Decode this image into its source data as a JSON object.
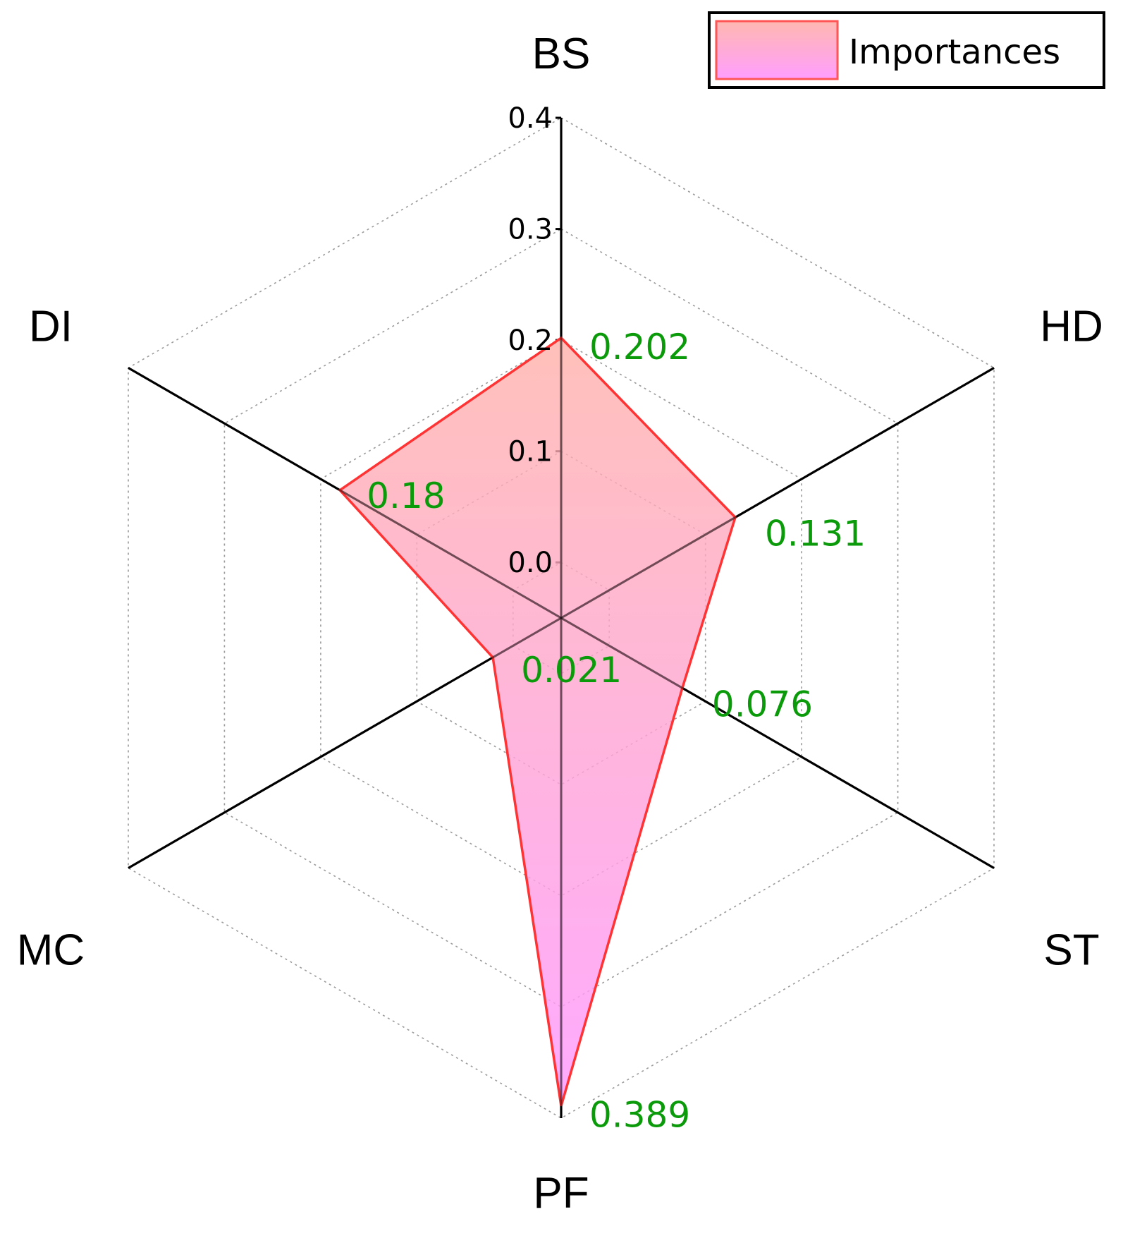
{
  "chart_data": {
    "type": "radar",
    "categories": [
      "BS",
      "HD",
      "ST",
      "PF",
      "MC",
      "DI"
    ],
    "series": [
      {
        "name": "Importances",
        "values": [
          0.202,
          0.131,
          0.076,
          0.389,
          0.021,
          0.18
        ]
      }
    ],
    "value_labels": [
      "0.202",
      "0.131",
      "0.076",
      "0.389",
      "0.021",
      "0.18"
    ],
    "radial_ticks": [
      "0.0",
      "0.1",
      "0.2",
      "0.3",
      "0.4"
    ],
    "rlim": [
      -0.05,
      0.4
    ],
    "grid": true,
    "legend": "top-right",
    "colors": {
      "fill_top": "#ffb0a8",
      "fill_bottom": "#ff99ff",
      "outline": "#ff3333",
      "value_label": "#0a9a0a",
      "axis": "#000000",
      "grid": "#9a9a9a"
    }
  }
}
